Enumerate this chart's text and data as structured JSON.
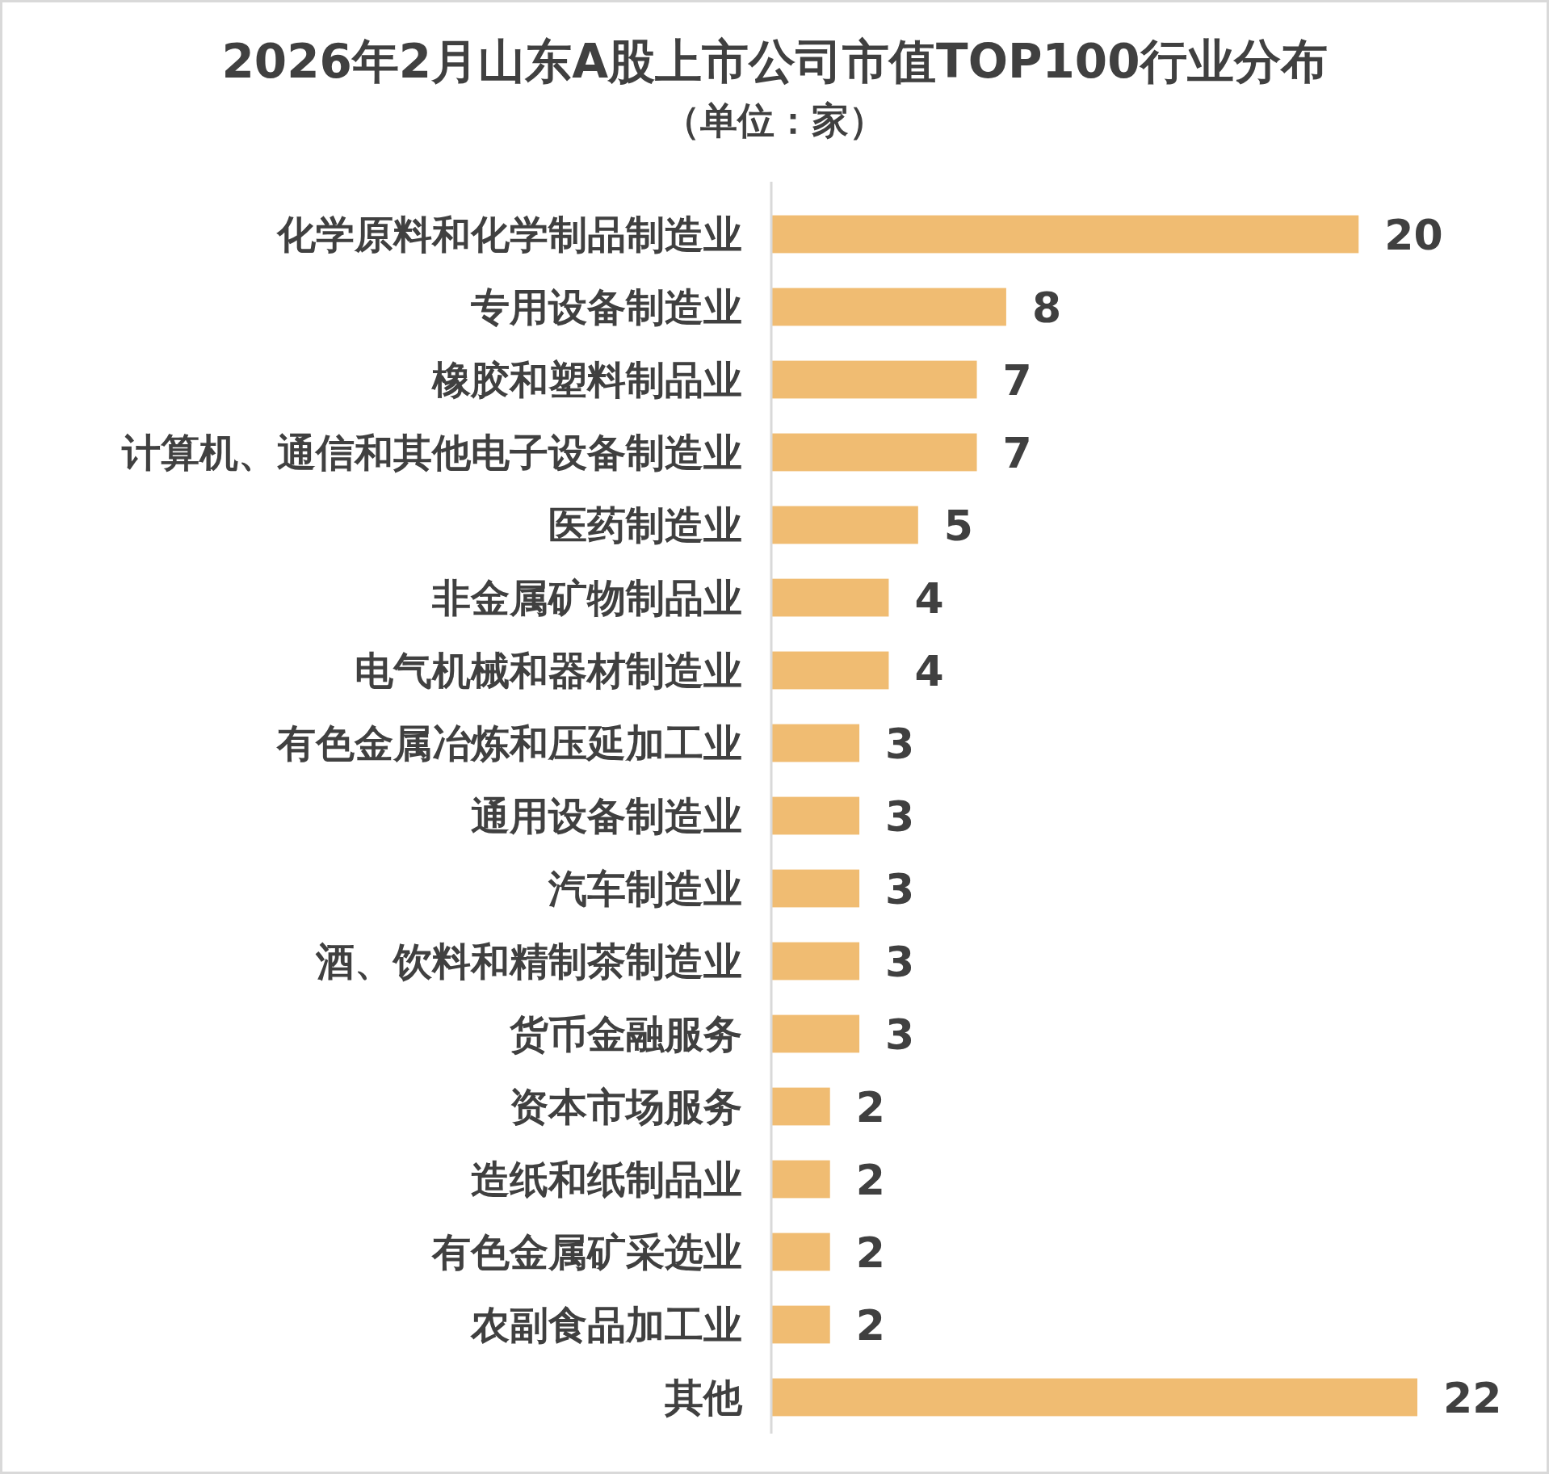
{
  "chart_data": {
    "type": "bar",
    "orientation": "horizontal",
    "title": "2026年2月山东A股上市公司市值TOP100行业分布",
    "subtitle": "（单位：家）",
    "categories": [
      "化学原料和化学制品制造业",
      "专用设备制造业",
      "橡胶和塑料制品业",
      "计算机、通信和其他电子设备制造业",
      "医药制造业",
      "非金属矿物制品业",
      "电气机械和器材制造业",
      "有色金属冶炼和压延加工业",
      "通用设备制造业",
      "汽车制造业",
      "酒、饮料和精制茶制造业",
      "货币金融服务",
      "资本市场服务",
      "造纸和纸制品业",
      "有色金属矿采选业",
      "农副食品加工业",
      "其他"
    ],
    "values": [
      20,
      8,
      7,
      7,
      5,
      4,
      4,
      3,
      3,
      3,
      3,
      3,
      2,
      2,
      2,
      2,
      22
    ],
    "color": "#f0bc72",
    "data_labels": true
  }
}
